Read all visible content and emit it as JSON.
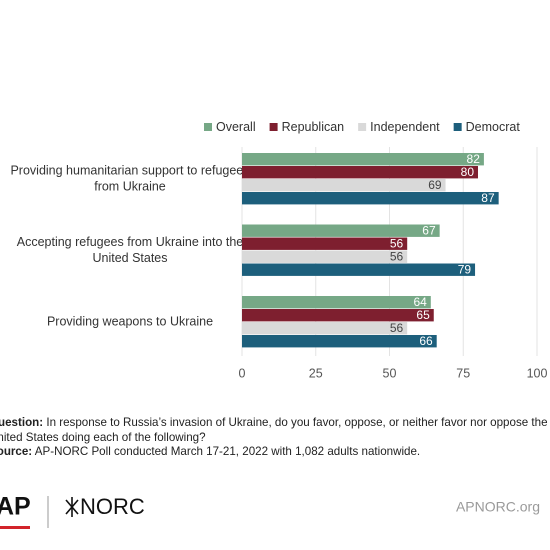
{
  "chart_data": {
    "type": "hbar",
    "categories": [
      [
        "Providing humanitarian support to refugees",
        "from Ukraine"
      ],
      [
        "Accepting refugees from Ukraine into the",
        "United States"
      ],
      [
        "Providing weapons to Ukraine"
      ]
    ],
    "series": [
      {
        "name": "Overall",
        "color": "#76a886",
        "values": [
          82,
          67,
          64
        ]
      },
      {
        "name": "Republican",
        "color": "#7e1f2f",
        "values": [
          80,
          56,
          65
        ]
      },
      {
        "name": "Independent",
        "color": "#d9d9d9",
        "values": [
          69,
          56,
          56
        ]
      },
      {
        "name": "Democrat",
        "color": "#1d5f7c",
        "values": [
          87,
          79,
          66
        ]
      }
    ],
    "xlim": [
      0,
      100
    ],
    "xticks": [
      0,
      25,
      50,
      75,
      100
    ],
    "grid": true,
    "legend": "top"
  },
  "notes": {
    "question_label": "Question:",
    "question": "In response to Russia’s invasion of Ukraine, do you favor, oppose, or neither favor nor oppose the United States doing each of the following?",
    "source_label": "Source:",
    "source": "AP-NORC Poll conducted March 17-21, 2022 with 1,082 adults nationwide."
  },
  "logos": {
    "ap": "AP",
    "norc": "NORC",
    "website": "APNORC.org"
  }
}
